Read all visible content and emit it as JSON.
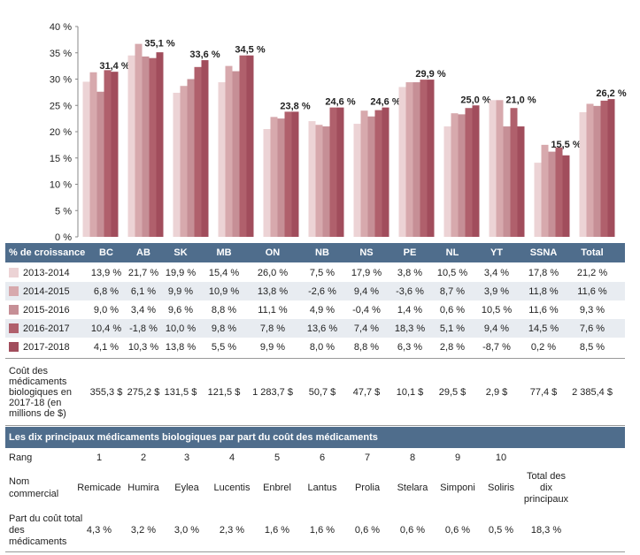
{
  "chart_data": {
    "type": "bar",
    "categories": [
      "BC",
      "AB",
      "SK",
      "MB",
      "ON",
      "NB",
      "NS",
      "PE",
      "NL",
      "YT",
      "SSNA",
      "Total"
    ],
    "series": [
      {
        "name": "2013-2014",
        "values": [
          29.5,
          34.5,
          27.4,
          29.4,
          20.5,
          22.0,
          21.5,
          28.5,
          21.0,
          26.0,
          14.1,
          23.7
        ]
      },
      {
        "name": "2014-2015",
        "values": [
          31.3,
          36.7,
          28.7,
          32.5,
          22.8,
          21.3,
          24.0,
          29.4,
          23.5,
          26.0,
          17.5,
          25.3
        ]
      },
      {
        "name": "2015-2016",
        "values": [
          27.6,
          34.3,
          30.0,
          31.5,
          22.5,
          21.0,
          22.9,
          29.4,
          23.3,
          21.0,
          16.2,
          24.9
        ]
      },
      {
        "name": "2016-2017",
        "values": [
          31.7,
          34.0,
          32.3,
          34.5,
          23.8,
          24.6,
          24.1,
          29.9,
          24.5,
          24.5,
          17.0,
          25.9
        ]
      },
      {
        "name": "2017-2018",
        "values": [
          31.4,
          35.1,
          33.6,
          34.5,
          23.8,
          24.6,
          24.6,
          29.9,
          25.0,
          21.0,
          15.5,
          26.2
        ]
      }
    ],
    "labels": [
      "31,4 %",
      "35,1 %",
      "33,6 %",
      "34,5 %",
      "23,8 %",
      "24,6 %",
      "24,6 %",
      "29,9 %",
      "25,0 %",
      "21,0 %",
      "15,5 %",
      "26,2 %"
    ],
    "yticks": [
      "0 %",
      "5 %",
      "10 %",
      "15 %",
      "20 %",
      "25 %",
      "30 %",
      "35 %",
      "40 %"
    ],
    "ylim": [
      0,
      40
    ],
    "colors": [
      "#ecd3d5",
      "#d7a9ad",
      "#c68f96",
      "#b0606c",
      "#a14d5c"
    ]
  },
  "table": {
    "header_label": "% de croissance",
    "columns": [
      "BC",
      "AB",
      "SK",
      "MB",
      "ON",
      "NB",
      "NS",
      "PE",
      "NL",
      "YT",
      "SSNA",
      "Total"
    ],
    "rows": [
      {
        "label": "2013-2014",
        "values": [
          "13,9 %",
          "21,7 %",
          "19,9 %",
          "15,4 %",
          "26,0 %",
          "7,5 %",
          "17,9 %",
          "3,8 %",
          "10,5 %",
          "3,4 %",
          "17,8 %",
          "21,2 %"
        ]
      },
      {
        "label": "2014-2015",
        "values": [
          "6,8 %",
          "6,1 %",
          "9,9 %",
          "10,9 %",
          "13,8 %",
          "-2,6 %",
          "9,4 %",
          "-3,6 %",
          "8,7 %",
          "3,9 %",
          "11,8 %",
          "11,6 %"
        ]
      },
      {
        "label": "2015-2016",
        "values": [
          "9,0 %",
          "3,4 %",
          "9,6 %",
          "8,8 %",
          "11,1 %",
          "4,9 %",
          "-0,4 %",
          "1,4 %",
          "0,6 %",
          "10,5 %",
          "11,6 %",
          "9,3 %"
        ]
      },
      {
        "label": "2016-2017",
        "values": [
          "10,4 %",
          "-1,8 %",
          "10,0 %",
          "9,8 %",
          "7,8 %",
          "13,6 %",
          "7,4 %",
          "18,3 %",
          "5,1 %",
          "9,4 %",
          "14,5 %",
          "7,6 %"
        ]
      },
      {
        "label": "2017-2018",
        "values": [
          "4,1 %",
          "10,3 %",
          "13,8 %",
          "5,5 %",
          "9,9 %",
          "8,0 %",
          "8,8 %",
          "6,3 %",
          "2,8 %",
          "-8,7 %",
          "0,2 %",
          "8,5 %"
        ]
      }
    ],
    "cost_label": "Coût des médicaments biologiques en 2017-18 (en millions de $)",
    "cost_values": [
      "355,3 $",
      "275,2 $",
      "131,5 $",
      "121,5 $",
      "1 283,7 $",
      "50,7 $",
      "47,7 $",
      "10,1 $",
      "29,5 $",
      "2,9 $",
      "77,4 $",
      "2 385,4 $"
    ]
  },
  "top10": {
    "title": "Les dix principaux médicaments biologiques par part du coût des médicaments",
    "rank_label": "Rang",
    "ranks": [
      "1",
      "2",
      "3",
      "4",
      "5",
      "6",
      "7",
      "8",
      "9",
      "10"
    ],
    "name_label": "Nom commercial",
    "names": [
      "Remicade",
      "Humira",
      "Eylea",
      "Lucentis",
      "Enbrel",
      "Lantus",
      "Prolia",
      "Stelara",
      "Simponi",
      "Soliris"
    ],
    "total_label": "Total des dix principaux",
    "share_label": "Part du coût total des médicaments",
    "shares": [
      "4,3 %",
      "3,2 %",
      "3,0 %",
      "2,3 %",
      "1,6 %",
      "1,6 %",
      "0,6 %",
      "0,6 %",
      "0,6 %",
      "0,5 %"
    ],
    "total_share": "18,3 %"
  }
}
